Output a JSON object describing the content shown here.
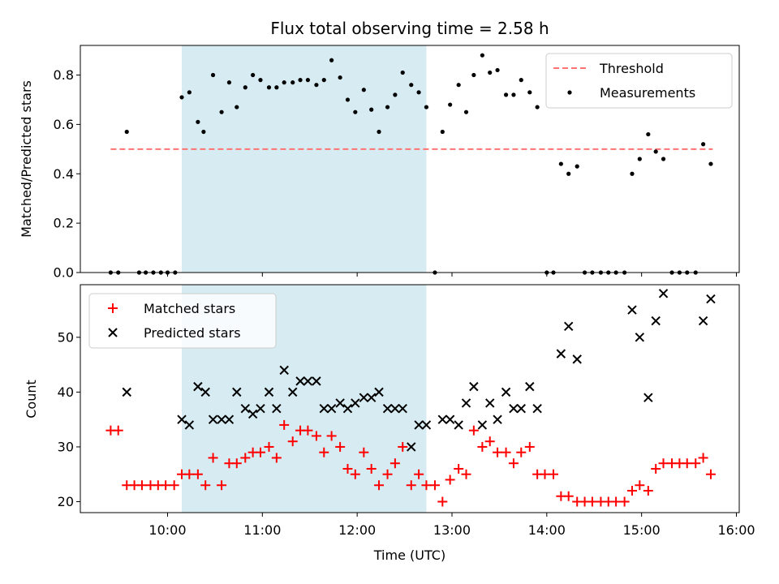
{
  "chart_data": [
    {
      "type": "scatter",
      "title": "Flux total observing time = 2.58 h",
      "xlabel": "",
      "ylabel": "Matched/Predicted stars",
      "xlim_hours": [
        9.08,
        16.03
      ],
      "ylim": [
        0,
        0.92
      ],
      "yticks": [
        0.0,
        0.2,
        0.4,
        0.6,
        0.8
      ],
      "ytick_labels": [
        "0.0",
        "0.2",
        "0.4",
        "0.6",
        "0.8"
      ],
      "xticks_hours": [
        10,
        11,
        12,
        13,
        14,
        15,
        16
      ],
      "shaded_region_hours": [
        10.15,
        12.73
      ],
      "legend_position": "upper right",
      "threshold": {
        "name": "Threshold",
        "value": 0.5,
        "x_range_hours": [
          9.4,
          15.75
        ],
        "color": "#ff7373"
      },
      "series": [
        {
          "name": "Measurements",
          "color": "#000000",
          "x_hours": [
            9.4,
            9.48,
            9.57,
            9.7,
            9.77,
            9.85,
            9.93,
            10.0,
            10.08,
            10.15,
            10.23,
            10.32,
            10.38,
            10.48,
            10.57,
            10.65,
            10.73,
            10.82,
            10.9,
            10.98,
            11.07,
            11.15,
            11.23,
            11.32,
            11.4,
            11.48,
            11.57,
            11.65,
            11.73,
            11.82,
            11.9,
            11.98,
            12.07,
            12.15,
            12.23,
            12.32,
            12.4,
            12.48,
            12.57,
            12.65,
            12.73,
            12.82,
            12.9,
            12.98,
            13.07,
            13.15,
            13.23,
            13.32,
            13.4,
            13.48,
            13.57,
            13.65,
            13.73,
            13.82,
            13.9,
            14.0,
            14.07,
            14.15,
            14.23,
            14.32,
            14.4,
            14.48,
            14.57,
            14.65,
            14.73,
            14.82,
            14.9,
            14.98,
            15.07,
            15.15,
            15.23,
            15.32,
            15.4,
            15.48,
            15.57,
            15.65,
            15.73
          ],
          "y_values": [
            0,
            0,
            0.57,
            0,
            0,
            0,
            0,
            0,
            0,
            0.71,
            0.73,
            0.61,
            0.57,
            0.8,
            0.65,
            0.77,
            0.67,
            0.75,
            0.8,
            0.78,
            0.75,
            0.75,
            0.77,
            0.77,
            0.78,
            0.78,
            0.76,
            0.78,
            0.86,
            0.79,
            0.7,
            0.65,
            0.74,
            0.66,
            0.57,
            0.67,
            0.72,
            0.81,
            0.76,
            0.73,
            0.67,
            0,
            0.57,
            0.68,
            0.76,
            0.65,
            0.8,
            0.88,
            0.81,
            0.82,
            0.72,
            0.72,
            0.78,
            0.73,
            0.67,
            0,
            0,
            0.44,
            0.4,
            0.43,
            0,
            0,
            0,
            0,
            0,
            0,
            0.4,
            0.46,
            0.56,
            0.49,
            0.46,
            0,
            0,
            0,
            0,
            0.52,
            0.44
          ]
        }
      ]
    },
    {
      "type": "scatter",
      "title": "",
      "xlabel": "Time (UTC)",
      "ylabel": "Count",
      "xlim_hours": [
        9.08,
        16.03
      ],
      "ylim": [
        18.0,
        59.6
      ],
      "yticks": [
        20,
        30,
        40,
        50
      ],
      "ytick_labels": [
        "20",
        "30",
        "40",
        "50"
      ],
      "xticks_hours": [
        10,
        11,
        12,
        13,
        14,
        15,
        16
      ],
      "xtick_labels": [
        "10:00",
        "11:00",
        "12:00",
        "13:00",
        "14:00",
        "15:00",
        "16:00"
      ],
      "shaded_region_hours": [
        10.15,
        12.73
      ],
      "legend_position": "upper left",
      "series": [
        {
          "name": "Matched stars",
          "marker": "plus",
          "color": "#ff0000",
          "x_hours": [
            9.4,
            9.48,
            9.57,
            9.65,
            9.73,
            9.82,
            9.9,
            9.98,
            10.07,
            10.15,
            10.23,
            10.32,
            10.4,
            10.48,
            10.57,
            10.65,
            10.73,
            10.82,
            10.9,
            10.98,
            11.07,
            11.15,
            11.23,
            11.32,
            11.4,
            11.48,
            11.57,
            11.65,
            11.73,
            11.82,
            11.9,
            11.98,
            12.07,
            12.15,
            12.23,
            12.32,
            12.4,
            12.48,
            12.57,
            12.65,
            12.73,
            12.82,
            12.9,
            12.98,
            13.07,
            13.15,
            13.23,
            13.32,
            13.4,
            13.48,
            13.57,
            13.65,
            13.73,
            13.82,
            13.9,
            13.98,
            14.07,
            14.15,
            14.23,
            14.32,
            14.4,
            14.48,
            14.57,
            14.65,
            14.73,
            14.82,
            14.9,
            14.98,
            15.07,
            15.15,
            15.23,
            15.32,
            15.4,
            15.48,
            15.57,
            15.65,
            15.73
          ],
          "y_values": [
            33,
            33,
            23,
            23,
            23,
            23,
            23,
            23,
            23,
            25,
            25,
            25,
            23,
            28,
            23,
            27,
            27,
            28,
            29,
            29,
            30,
            28,
            34,
            31,
            33,
            33,
            32,
            29,
            32,
            30,
            26,
            25,
            29,
            26,
            23,
            25,
            27,
            30,
            23,
            25,
            23,
            23,
            20,
            24,
            26,
            25,
            33,
            30,
            31,
            29,
            29,
            27,
            29,
            30,
            25,
            25,
            25,
            21,
            21,
            20,
            20,
            20,
            20,
            20,
            20,
            20,
            22,
            23,
            22,
            26,
            27,
            27,
            27,
            27,
            27,
            28,
            25
          ]
        },
        {
          "name": "Predicted stars",
          "marker": "x",
          "color": "#000000",
          "x_hours": [
            9.57,
            10.15,
            10.23,
            10.32,
            10.4,
            10.48,
            10.57,
            10.65,
            10.73,
            10.82,
            10.9,
            10.98,
            11.07,
            11.15,
            11.23,
            11.32,
            11.4,
            11.48,
            11.57,
            11.65,
            11.73,
            11.82,
            11.9,
            11.98,
            12.07,
            12.15,
            12.23,
            12.32,
            12.4,
            12.48,
            12.57,
            12.65,
            12.73,
            12.9,
            12.98,
            13.07,
            13.15,
            13.23,
            13.32,
            13.4,
            13.48,
            13.57,
            13.65,
            13.73,
            13.82,
            13.9,
            14.15,
            14.23,
            14.32,
            14.9,
            14.98,
            15.07,
            15.15,
            15.23,
            15.65,
            15.73
          ],
          "y_values": [
            40,
            35,
            34,
            41,
            40,
            35,
            35,
            35,
            40,
            37,
            36,
            37,
            40,
            37,
            44,
            40,
            42,
            42,
            42,
            37,
            37,
            38,
            37,
            38,
            39,
            39,
            40,
            37,
            37,
            37,
            30,
            34,
            34,
            35,
            35,
            34,
            38,
            41,
            34,
            38,
            35,
            40,
            37,
            37,
            41,
            37,
            47,
            52,
            46,
            55,
            50,
            39,
            53,
            58,
            53,
            57
          ]
        }
      ]
    }
  ]
}
